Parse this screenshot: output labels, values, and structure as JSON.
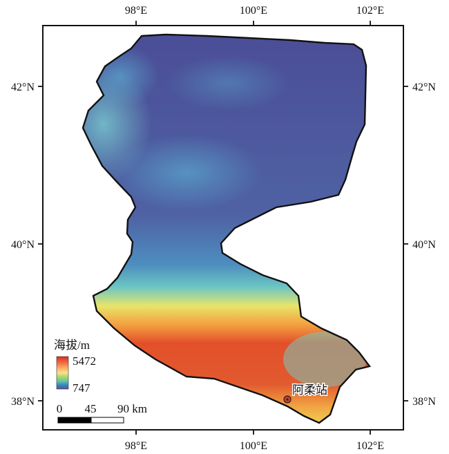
{
  "map": {
    "x_ticks": [
      "98°E",
      "100°E",
      "102°E"
    ],
    "y_ticks": [
      "42°N",
      "40°N",
      "38°N"
    ],
    "legend": {
      "title": "海拔/m",
      "max": "5472",
      "min": "747",
      "colors": [
        "#d7301f",
        "#f46d43",
        "#fdae61",
        "#fee08b",
        "#a6d96a",
        "#66c2a5",
        "#3288bd",
        "#5e4fa2"
      ]
    },
    "station": {
      "label": "阿柔站"
    },
    "scalebar": {
      "labels": [
        "0",
        "45",
        "90 km"
      ]
    }
  }
}
